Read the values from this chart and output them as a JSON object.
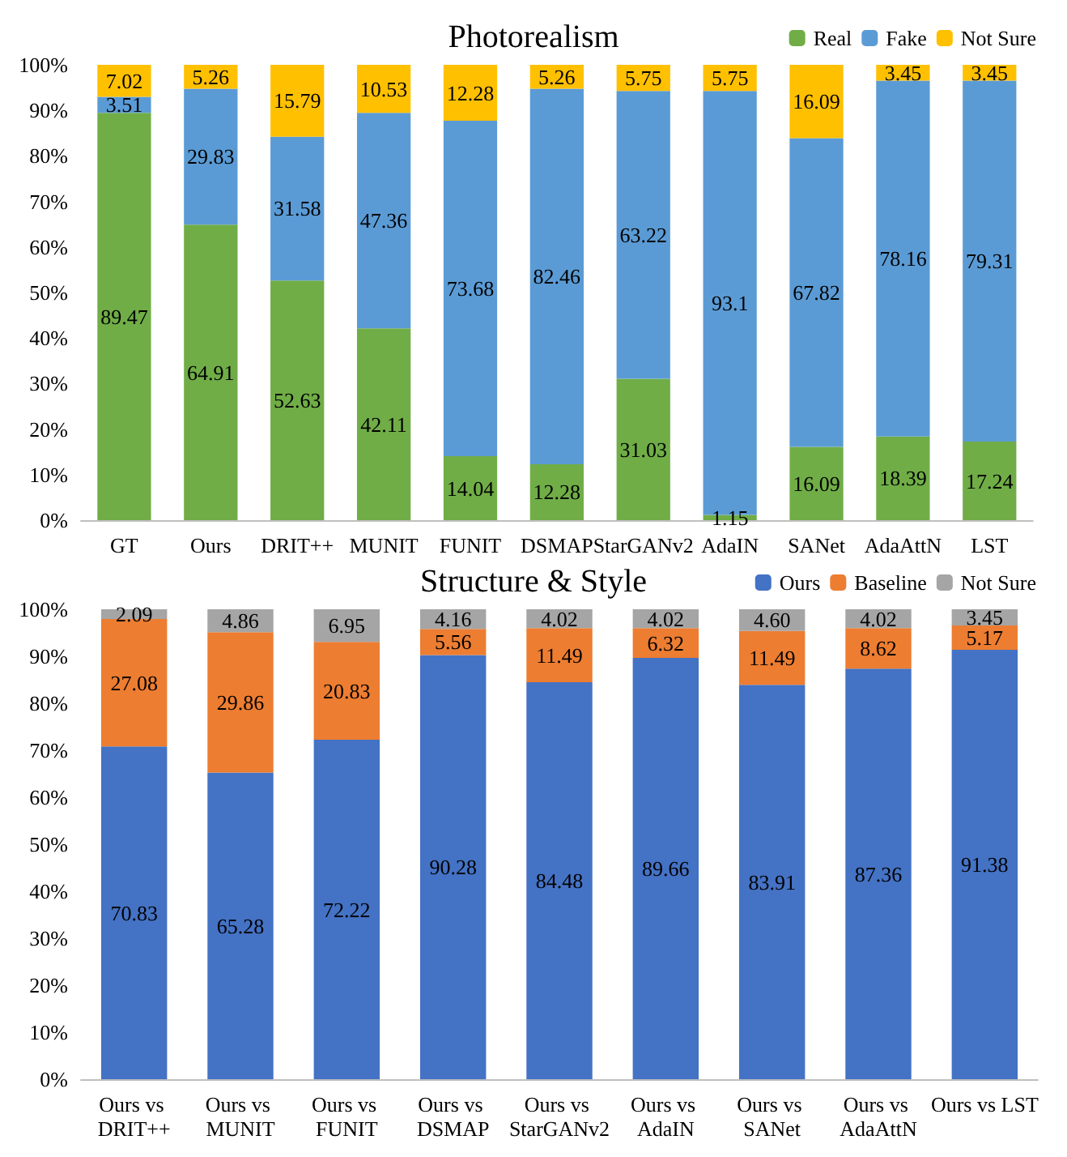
{
  "chart_data": [
    {
      "type": "bar",
      "title": "Photorealism",
      "categories": [
        "GT",
        "Ours",
        "DRIT++",
        "MUNIT",
        "FUNIT",
        "DSMAP",
        "StarGANv2",
        "AdaIN",
        "SANet",
        "AdaAttN",
        "LST"
      ],
      "stacked": true,
      "legend": "top right",
      "grid": false,
      "data_labels": true,
      "ylim": [
        0,
        100
      ],
      "yticks": [
        {
          "value": 0,
          "label": "0%"
        },
        {
          "value": 10,
          "label": "10%"
        },
        {
          "value": 20,
          "label": "20%"
        },
        {
          "value": 30,
          "label": "30%"
        },
        {
          "value": 40,
          "label": "40%"
        },
        {
          "value": 50,
          "label": "50%"
        },
        {
          "value": 60,
          "label": "60%"
        },
        {
          "value": 70,
          "label": "70%"
        },
        {
          "value": 80,
          "label": "80%"
        },
        {
          "value": 90,
          "label": "90%"
        },
        {
          "value": 100,
          "label": "100%"
        }
      ],
      "series": [
        {
          "name": "Real",
          "color": "#70ad47",
          "values": [
            89.47,
            64.91,
            52.63,
            42.11,
            14.04,
            12.28,
            31.03,
            1.15,
            16.09,
            18.39,
            17.24
          ]
        },
        {
          "name": "Fake",
          "color": "#5b9bd5",
          "values": [
            3.51,
            29.83,
            31.58,
            47.36,
            73.68,
            82.46,
            63.22,
            93.1,
            67.82,
            78.16,
            79.31
          ]
        },
        {
          "name": "Not Sure",
          "color": "#ffc000",
          "values": [
            7.02,
            5.26,
            15.79,
            10.53,
            12.28,
            5.26,
            5.75,
            5.75,
            16.09,
            3.45,
            3.45
          ]
        }
      ]
    },
    {
      "type": "bar",
      "title": "Structure & Style",
      "categories": [
        "Ours vs DRIT++",
        "Ours vs MUNIT",
        "Ours vs FUNIT",
        "Ours vs DSMAP",
        "Ours vs StarGANv2",
        "Ours vs AdaIN",
        "Ours vs SANet",
        "Ours vs AdaAttN",
        "Ours vs LST"
      ],
      "stacked": true,
      "legend": "top right",
      "grid": false,
      "ylim": [
        0,
        100
      ],
      "yticks": [
        {
          "value": 0,
          "label": "0%"
        },
        {
          "value": 10,
          "label": "10%"
        },
        {
          "value": 20,
          "label": "20%"
        },
        {
          "value": 30,
          "label": "30%"
        },
        {
          "value": 40,
          "label": "40%"
        },
        {
          "value": 50,
          "label": "50%"
        },
        {
          "value": 60,
          "label": "60%"
        },
        {
          "value": 70,
          "label": "70%"
        },
        {
          "value": 80,
          "label": "80%"
        },
        {
          "value": 90,
          "label": "90%"
        },
        {
          "value": 100,
          "label": "100%"
        }
      ],
      "series": [
        {
          "name": "Ours",
          "color": "#4472c4",
          "values": [
            70.83,
            65.28,
            72.22,
            90.28,
            84.48,
            89.66,
            83.91,
            87.36,
            91.38
          ],
          "value_labels": [
            "70.83",
            "65.28",
            "72.22",
            "90.28",
            "84.48",
            "89.66",
            "83.91",
            "87.36",
            "91.38"
          ]
        },
        {
          "name": "Baseline",
          "color": "#ed7d31",
          "values": [
            27.08,
            29.86,
            20.83,
            5.56,
            11.49,
            6.32,
            11.49,
            8.62,
            5.17
          ],
          "value_labels": [
            "27.08",
            "29.86",
            "20.83",
            "5.56",
            "11.49",
            "6.32",
            "11.49",
            "8.62",
            "5.17"
          ]
        },
        {
          "name": "Not Sure",
          "color": "#a5a5a5",
          "values": [
            2.09,
            4.86,
            6.95,
            4.16,
            4.02,
            4.02,
            4.6,
            4.02,
            3.45
          ],
          "value_labels": [
            "2.09",
            "4.86",
            "6.95",
            "4.16",
            "4.02",
            "4.02",
            "4.60",
            "4.02",
            "3.45"
          ]
        }
      ]
    }
  ]
}
